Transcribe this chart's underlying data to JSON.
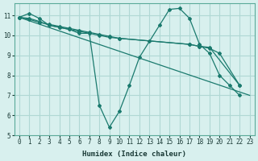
{
  "background_color": "#d8f0ee",
  "grid_color": "#b0d8d4",
  "line_color": "#1a7a6e",
  "xlabel": "Humidex (Indice chaleur)",
  "xlim": [
    -0.5,
    23.5
  ],
  "ylim": [
    5,
    11.6
  ],
  "yticks": [
    5,
    6,
    7,
    8,
    9,
    10,
    11
  ],
  "xticks": [
    0,
    1,
    2,
    3,
    4,
    5,
    6,
    7,
    8,
    9,
    10,
    11,
    12,
    13,
    14,
    15,
    16,
    17,
    18,
    19,
    20,
    21,
    22,
    23
  ],
  "lines": [
    {
      "x": [
        0,
        1,
        2,
        3,
        4,
        5,
        6,
        7,
        8,
        9,
        10,
        11,
        12,
        13,
        14,
        15,
        16,
        17,
        18,
        19,
        20,
        21,
        22
      ],
      "y": [
        10.9,
        11.1,
        10.85,
        10.5,
        10.4,
        10.3,
        10.1,
        10.1,
        6.5,
        5.4,
        6.2,
        7.5,
        8.9,
        9.7,
        10.5,
        11.3,
        11.35,
        10.85,
        9.55,
        9.1,
        8.0,
        7.5,
        7.0
      ]
    },
    {
      "x": [
        0,
        23
      ],
      "y": [
        10.9,
        7.0
      ]
    },
    {
      "x": [
        0,
        1,
        2,
        3,
        4,
        5,
        6,
        7,
        8,
        9,
        10,
        17,
        18,
        19,
        22
      ],
      "y": [
        10.9,
        10.85,
        10.7,
        10.5,
        10.4,
        10.3,
        10.2,
        10.1,
        10.0,
        9.9,
        9.85,
        9.55,
        9.45,
        9.4,
        7.5
      ]
    },
    {
      "x": [
        0,
        1,
        2,
        3,
        4,
        5,
        6,
        7,
        8,
        9,
        10,
        17,
        18,
        19,
        20,
        22
      ],
      "y": [
        10.9,
        10.8,
        10.65,
        10.55,
        10.45,
        10.35,
        10.25,
        10.15,
        10.05,
        9.95,
        9.85,
        9.55,
        9.45,
        9.35,
        9.1,
        7.5
      ]
    }
  ]
}
